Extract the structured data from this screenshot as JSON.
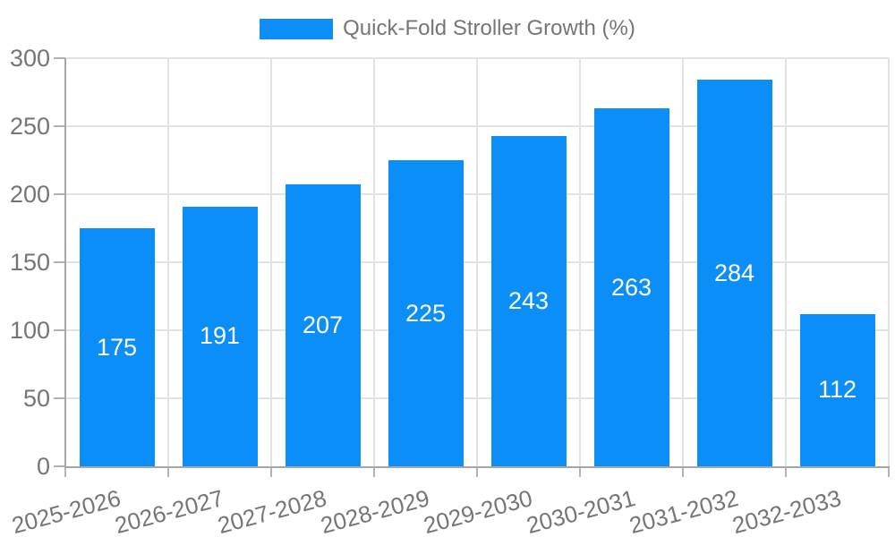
{
  "legend": {
    "label": "Quick-Fold Stroller Growth (%)",
    "swatch_color": "#0b8ef8"
  },
  "chart_data": {
    "type": "bar",
    "title": "Quick-Fold Stroller Growth (%)",
    "series_name": "Quick-Fold Stroller Growth (%)",
    "categories": [
      "2025-2026",
      "2026-2027",
      "2027-2028",
      "2028-2029",
      "2029-2030",
      "2030-2031",
      "2031-2032",
      "2032-2033"
    ],
    "values": [
      175,
      191,
      207,
      225,
      243,
      263,
      284,
      112
    ],
    "ylim": [
      0,
      300
    ],
    "yticks": [
      0,
      50,
      100,
      150,
      200,
      250,
      300
    ],
    "grid": true,
    "legend_position": "top center",
    "value_labels": "inside-center",
    "xlabel": "",
    "ylabel": "",
    "colors": {
      "bar": "#0b8ef8",
      "value_text": "#ffffff",
      "tick_text": "#757575",
      "axis": "#a6a6a6",
      "gridline": "#e2e2e2"
    }
  }
}
